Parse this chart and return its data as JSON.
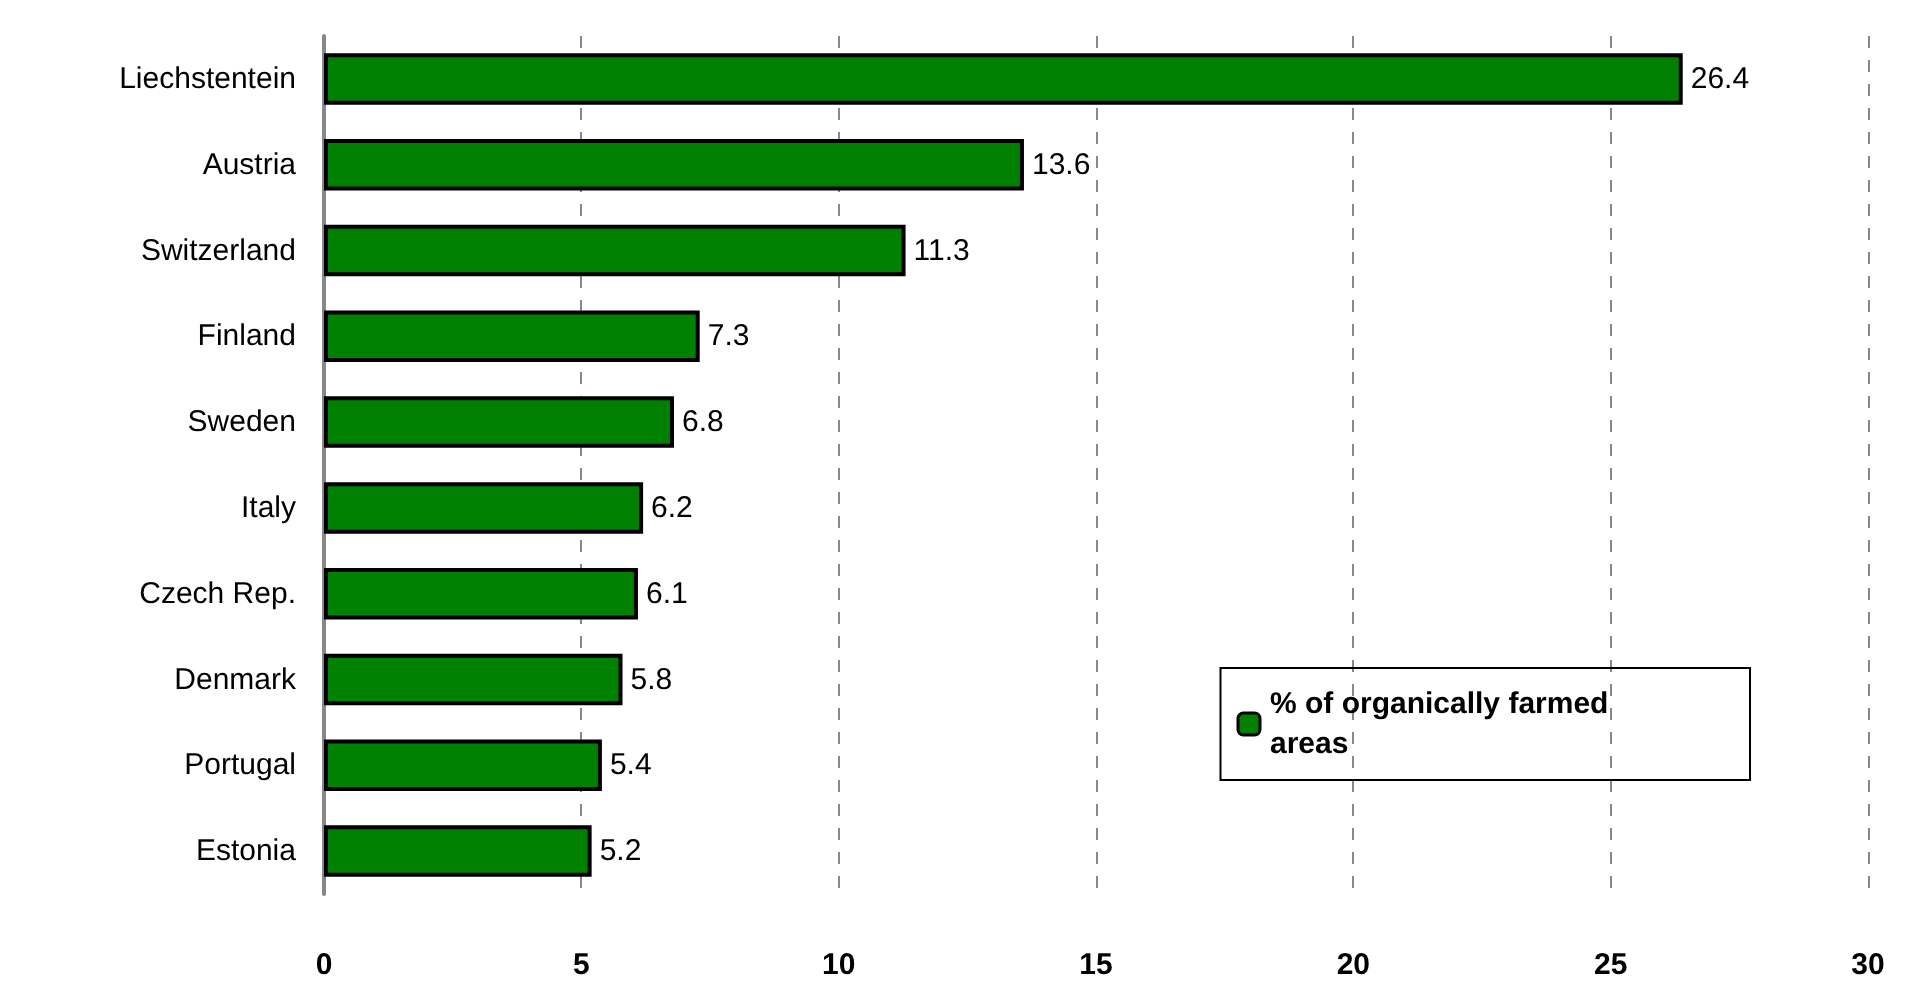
{
  "chart_data": {
    "type": "bar",
    "orientation": "horizontal",
    "categories": [
      "Liechstentein",
      "Austria",
      "Switzerland",
      "Finland",
      "Sweden",
      "Italy",
      "Czech Rep.",
      "Denmark",
      "Portugal",
      "Estonia"
    ],
    "series": [
      {
        "name": "% of organically farmed areas",
        "color": "#008000",
        "values": [
          26.4,
          13.6,
          11.3,
          7.3,
          6.8,
          6.2,
          6.1,
          5.8,
          5.4,
          5.2
        ]
      }
    ],
    "xlim": [
      0,
      30
    ],
    "xticks": [
      0,
      5,
      10,
      15,
      20,
      25,
      30
    ],
    "grid": "x",
    "legend": "bottom right",
    "data_labels": true
  }
}
